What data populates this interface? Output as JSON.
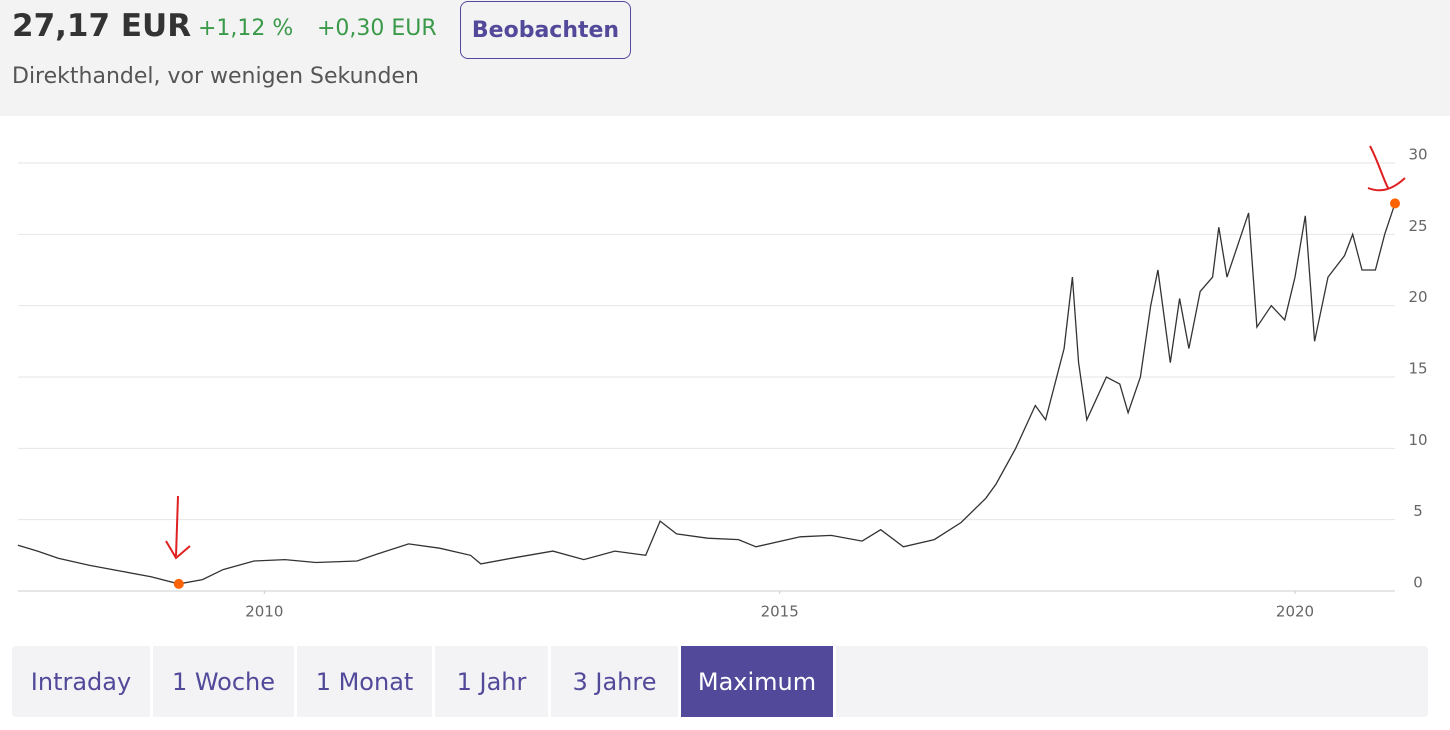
{
  "header": {
    "price": "27,17 EUR",
    "change_percent": "+1,12 %",
    "change_abs": "+0,30 EUR",
    "watch_button": "Beobachten",
    "subtitle": "Direkthandel, vor wenigen Sekunden"
  },
  "chart_data": {
    "type": "line",
    "x": [
      2007.61,
      2007.8,
      2008.0,
      2008.3,
      2008.6,
      2008.9,
      2009.17,
      2009.4,
      2009.6,
      2009.9,
      2010.2,
      2010.5,
      2010.9,
      2011.1,
      2011.4,
      2011.7,
      2012.0,
      2012.1,
      2012.4,
      2012.8,
      2013.1,
      2013.4,
      2013.7,
      2013.84,
      2014.0,
      2014.3,
      2014.6,
      2014.77,
      2015.2,
      2015.5,
      2015.8,
      2015.98,
      2016.2,
      2016.5,
      2016.76,
      2017.0,
      2017.1,
      2017.29,
      2017.48,
      2017.58,
      2017.76,
      2017.84,
      2017.9,
      2017.98,
      2018.17,
      2018.3,
      2018.38,
      2018.5,
      2018.6,
      2018.67,
      2018.79,
      2018.88,
      2018.97,
      2019.08,
      2019.2,
      2019.26,
      2019.34,
      2019.48,
      2019.55,
      2019.63,
      2019.77,
      2019.9,
      2020.0,
      2020.1,
      2020.19,
      2020.32,
      2020.48,
      2020.56,
      2020.65,
      2020.78,
      2020.87,
      2020.97
    ],
    "series": [
      {
        "color": "#333333",
        "values": [
          3.2,
          2.8,
          2.3,
          1.8,
          1.4,
          1.0,
          0.5,
          0.8,
          1.5,
          2.1,
          2.2,
          2.0,
          2.1,
          2.6,
          3.3,
          3.0,
          2.5,
          1.9,
          2.3,
          2.8,
          2.2,
          2.8,
          2.5,
          4.9,
          4.0,
          3.7,
          3.6,
          3.1,
          3.8,
          3.9,
          3.5,
          4.3,
          3.1,
          3.6,
          4.8,
          6.5,
          7.5,
          10.0,
          13.0,
          12.0,
          17.0,
          22.0,
          16.0,
          12.0,
          15.0,
          14.5,
          12.5,
          15.0,
          20.0,
          22.5,
          16.0,
          20.5,
          17.0,
          21.0,
          22.0,
          25.5,
          22.0,
          25.0,
          26.5,
          18.5,
          20.0,
          19.0,
          22.0,
          26.3,
          17.5,
          22.0,
          23.5,
          25.0,
          22.5,
          22.5,
          25.0,
          27.17
        ]
      }
    ],
    "xlim": [
      2007.61,
      2020.97
    ],
    "xticks": [
      2010,
      2015,
      2020
    ],
    "ylim": [
      0,
      30
    ],
    "yticks": [
      0,
      5,
      10,
      15,
      20,
      25,
      30
    ],
    "grid": true,
    "highlight_color": "#ff6200"
  },
  "tabs": [
    "Intraday",
    "1 Woche",
    "1 Monat",
    "1 Jahr",
    "3 Jahre",
    "Maximum"
  ]
}
